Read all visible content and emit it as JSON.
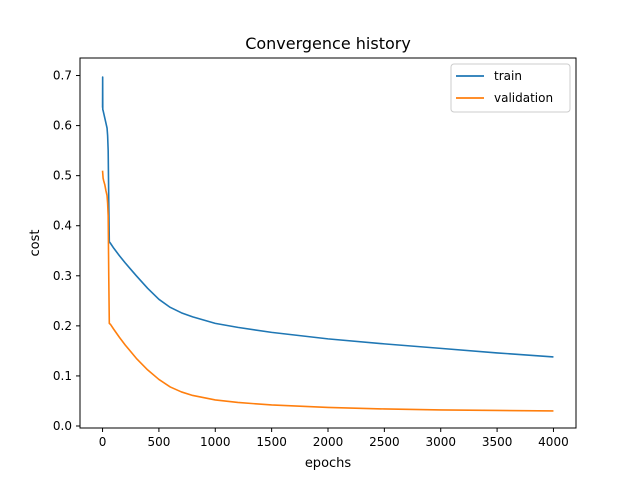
{
  "chart_data": {
    "type": "line",
    "title": "Convergence history",
    "xlabel": "epochs",
    "ylabel": "cost",
    "xlim": [
      -200,
      4200
    ],
    "ylim": [
      -0.004,
      0.735
    ],
    "xticks": [
      0,
      500,
      1000,
      1500,
      2000,
      2500,
      3000,
      3500,
      4000
    ],
    "yticks": [
      0.0,
      0.1,
      0.2,
      0.3,
      0.4,
      0.5,
      0.6,
      0.7
    ],
    "xtick_labels": [
      "0",
      "500",
      "1000",
      "1500",
      "2000",
      "2500",
      "3000",
      "3500",
      "4000"
    ],
    "ytick_labels": [
      "0.0",
      "0.1",
      "0.2",
      "0.3",
      "0.4",
      "0.5",
      "0.6",
      "0.7"
    ],
    "grid": false,
    "legend_position": "upper right",
    "series": [
      {
        "name": "train",
        "color": "#1f77b4",
        "x": [
          0,
          1,
          2,
          5,
          10,
          20,
          30,
          40,
          45,
          50,
          55,
          60,
          70,
          100,
          150,
          200,
          300,
          400,
          500,
          600,
          700,
          800,
          1000,
          1200,
          1500,
          2000,
          2500,
          3000,
          3500,
          4000
        ],
        "y": [
          0.636,
          0.697,
          0.632,
          0.63,
          0.625,
          0.615,
          0.605,
          0.595,
          0.58,
          0.55,
          0.45,
          0.368,
          0.365,
          0.355,
          0.34,
          0.326,
          0.3,
          0.275,
          0.253,
          0.237,
          0.226,
          0.218,
          0.205,
          0.197,
          0.187,
          0.174,
          0.164,
          0.155,
          0.146,
          0.138
        ]
      },
      {
        "name": "validation",
        "color": "#ff7f0e",
        "x": [
          0,
          5,
          10,
          20,
          30,
          40,
          45,
          50,
          55,
          60,
          70,
          100,
          150,
          200,
          300,
          400,
          500,
          600,
          700,
          800,
          1000,
          1200,
          1500,
          2000,
          2500,
          3000,
          3500,
          4000
        ],
        "y": [
          0.51,
          0.495,
          0.49,
          0.482,
          0.47,
          0.46,
          0.445,
          0.42,
          0.3,
          0.205,
          0.203,
          0.193,
          0.177,
          0.162,
          0.135,
          0.112,
          0.093,
          0.078,
          0.068,
          0.061,
          0.052,
          0.047,
          0.042,
          0.037,
          0.034,
          0.032,
          0.031,
          0.03
        ]
      }
    ]
  }
}
